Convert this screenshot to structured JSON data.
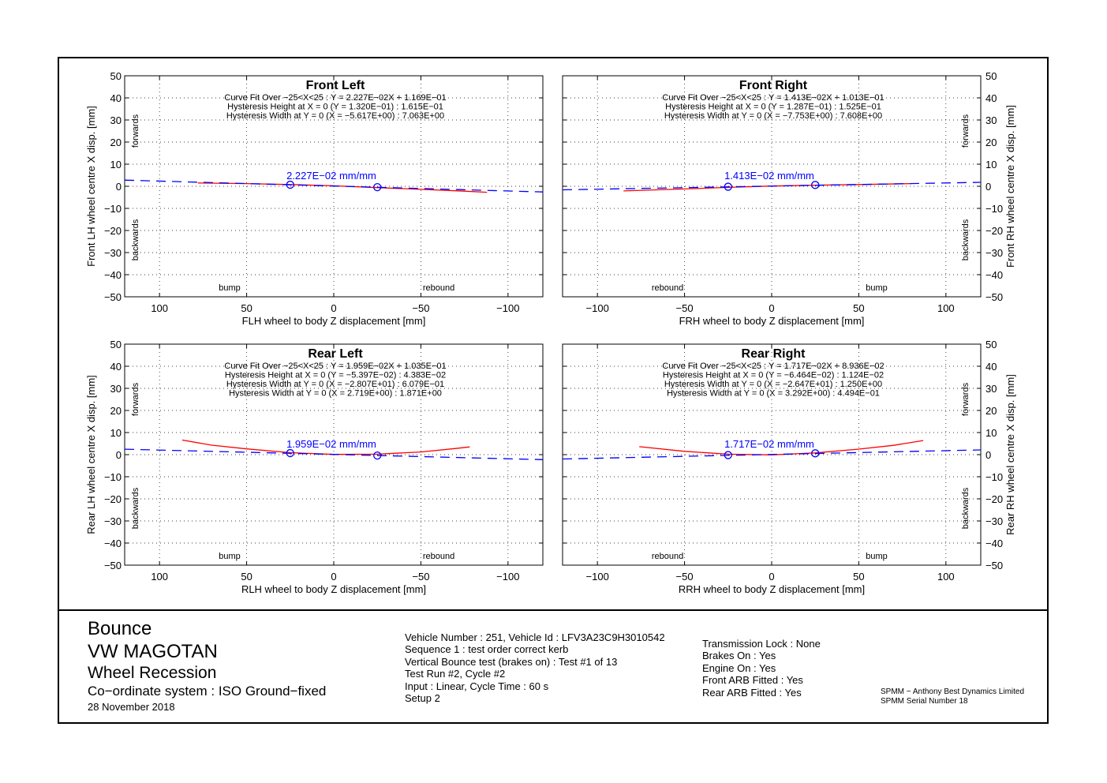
{
  "chart_data": [
    {
      "type": "line",
      "title": "Front Left",
      "xlabel": "FLH wheel to body Z displacement [mm]",
      "ylabel": "Front LH wheel centre X disp. [mm]",
      "xlim": [
        120,
        -120
      ],
      "ylim": [
        -50,
        50
      ],
      "xticks": [
        100,
        50,
        0,
        -50,
        -100
      ],
      "yticks": [
        50,
        40,
        30,
        20,
        10,
        0,
        -10,
        -20,
        -30,
        -40,
        -50
      ],
      "grid": true,
      "annotations": [
        "Curve Fit Over −25<X<25 : Y = 2.227E−02X + 1.169E−01",
        "Hysteresis Height at X = 0 (Y = 1.320E−01) : 1.615E−01",
        "Hysteresis Width at Y = 0 (X = −5.617E+00) : 7.063E+00"
      ],
      "slope_label": "2.227E−02 mm/mm",
      "region_labels": {
        "top_side": "forwards",
        "bottom_side": "backwards",
        "bottom_left": "bump",
        "bottom_right": "rebound"
      },
      "series": [
        {
          "style": "measured",
          "color": "#ff0000",
          "x": [
            78,
            50,
            25,
            0,
            -25,
            -50,
            -75,
            -88
          ],
          "y": [
            1.5,
            1.2,
            0.8,
            0.2,
            -0.6,
            -1.4,
            -2.2,
            -2.7
          ]
        },
        {
          "style": "fit",
          "color": "#0000ff",
          "x": [
            120,
            -120
          ],
          "y": [
            2.79,
            -2.56
          ]
        }
      ],
      "markers": [
        {
          "x": 25,
          "y": 0.7
        },
        {
          "x": -25,
          "y": -0.4
        }
      ]
    },
    {
      "type": "line",
      "title": "Front Right",
      "xlabel": "FRH wheel to body Z displacement [mm]",
      "ylabel": "Front RH wheel centre X disp. [mm]",
      "xlim": [
        -120,
        120
      ],
      "ylim": [
        -50,
        50
      ],
      "xticks": [
        -100,
        -50,
        0,
        50,
        100
      ],
      "yticks": [
        50,
        40,
        30,
        20,
        10,
        0,
        -10,
        -20,
        -30,
        -40,
        -50
      ],
      "grid": true,
      "annotations": [
        "Curve Fit Over −25<X<25 : Y = 1.413E−02X + 1.013E−01",
        "Hysteresis Height at X = 0 (Y = 1.287E−01) : 1.525E−01",
        "Hysteresis Width at Y = 0 (X = −7.753E+00) : 7.608E+00"
      ],
      "slope_label": "1.413E−02 mm/mm",
      "region_labels": {
        "top_side": "forwards",
        "bottom_side": "backwards",
        "bottom_left": "rebound",
        "bottom_right": "bump"
      },
      "series": [
        {
          "style": "measured",
          "color": "#ff0000",
          "x": [
            -85,
            -50,
            -25,
            0,
            25,
            50,
            80
          ],
          "y": [
            -2.1,
            -1.2,
            -0.5,
            0.1,
            0.5,
            0.8,
            1.2
          ]
        },
        {
          "style": "fit",
          "color": "#0000ff",
          "x": [
            -120,
            120
          ],
          "y": [
            -1.59,
            1.8
          ]
        }
      ],
      "markers": [
        {
          "x": -25,
          "y": -0.2
        },
        {
          "x": 25,
          "y": 0.6
        }
      ]
    },
    {
      "type": "line",
      "title": "Rear Left",
      "xlabel": "RLH wheel to body Z displacement [mm]",
      "ylabel": "Rear LH wheel centre X disp. [mm]",
      "xlim": [
        120,
        -120
      ],
      "ylim": [
        -50,
        50
      ],
      "xticks": [
        100,
        50,
        0,
        -50,
        -100
      ],
      "yticks": [
        50,
        40,
        30,
        20,
        10,
        0,
        -10,
        -20,
        -30,
        -40,
        -50
      ],
      "grid": true,
      "annotations": [
        "Curve Fit Over −25<X<25 : Y = 1.959E−02X + 1.035E−01",
        "Hysteresis Height at X = 0 (Y = −5.397E−02) : 4.383E−02",
        "Hysteresis Width at Y = 0 (X = −2.807E+01) : 6.079E−01",
        "Hysteresis Width at Y = 0 (X = 2.719E+00) : 1.871E+00"
      ],
      "slope_label": "1.959E−02 mm/mm",
      "region_labels": {
        "top_side": "forwards",
        "bottom_side": "backwards",
        "bottom_left": "bump",
        "bottom_right": "rebound"
      },
      "series": [
        {
          "style": "measured",
          "color": "#ff0000",
          "x": [
            87,
            70,
            50,
            25,
            0,
            -25,
            -50,
            -70,
            -78
          ],
          "y": [
            6.6,
            4.3,
            2.6,
            0.9,
            0.1,
            0.2,
            1.2,
            2.8,
            3.5
          ]
        },
        {
          "style": "fit",
          "color": "#0000ff",
          "x": [
            120,
            -120
          ],
          "y": [
            2.45,
            -2.25
          ]
        }
      ],
      "markers": [
        {
          "x": 25,
          "y": 0.7
        },
        {
          "x": -25,
          "y": -0.4
        }
      ]
    },
    {
      "type": "line",
      "title": "Rear Right",
      "xlabel": "RRH wheel to body Z displacement [mm]",
      "ylabel": "Rear RH wheel centre X disp. [mm]",
      "xlim": [
        -120,
        120
      ],
      "ylim": [
        -50,
        50
      ],
      "xticks": [
        -100,
        -50,
        0,
        50,
        100
      ],
      "yticks": [
        50,
        40,
        30,
        20,
        10,
        0,
        -10,
        -20,
        -30,
        -40,
        -50
      ],
      "grid": true,
      "annotations": [
        "Curve Fit Over −25<X<25 : Y = 1.717E−02X + 8.936E−02",
        "Hysteresis Height at X = 0 (Y = −6.464E−02) : 1.124E−02",
        "Hysteresis Width at Y = 0 (X = −2.647E+01) : 1.250E+00",
        "Hysteresis Width at Y = 0 (X = 3.292E+00) : 4.494E−01"
      ],
      "slope_label": "1.717E−02 mm/mm",
      "region_labels": {
        "top_side": "forwards",
        "bottom_side": "backwards",
        "bottom_left": "rebound",
        "bottom_right": "bump"
      },
      "series": [
        {
          "style": "measured",
          "color": "#ff0000",
          "x": [
            -76,
            -50,
            -25,
            0,
            25,
            50,
            70,
            87
          ],
          "y": [
            3.6,
            1.5,
            0.2,
            -0.1,
            0.8,
            2.5,
            4.2,
            6.4
          ]
        },
        {
          "style": "fit",
          "color": "#0000ff",
          "x": [
            -120,
            120
          ],
          "y": [
            -1.97,
            2.15
          ]
        }
      ],
      "markers": [
        {
          "x": -25,
          "y": -0.2
        },
        {
          "x": 25,
          "y": 0.6
        }
      ]
    }
  ],
  "footer": {
    "title1": "Bounce",
    "title2": "VW MAGOTAN",
    "title3": "Wheel Recession",
    "coordinate_system": "Co−ordinate system : ISO Ground−fixed",
    "date": "28 November 2018",
    "test_info": [
      "Vehicle Number : 251, Vehicle Id : LFV3A23C9H3010542",
      "Sequence 1 : test order correct kerb",
      "Vertical Bounce test (brakes on) : Test #1 of 13",
      "Test Run #2, Cycle #2",
      "Input : Linear, Cycle Time : 60 s",
      "Setup 2"
    ],
    "vehicle_state": [
      "Transmission Lock : None",
      "Brakes On : Yes",
      "Engine On : Yes",
      "Front ARB Fitted : Yes",
      "Rear ARB Fitted : Yes"
    ],
    "credits": [
      "SPMM − Anthony Best Dynamics Limited",
      "SPMM Serial Number 18"
    ]
  }
}
